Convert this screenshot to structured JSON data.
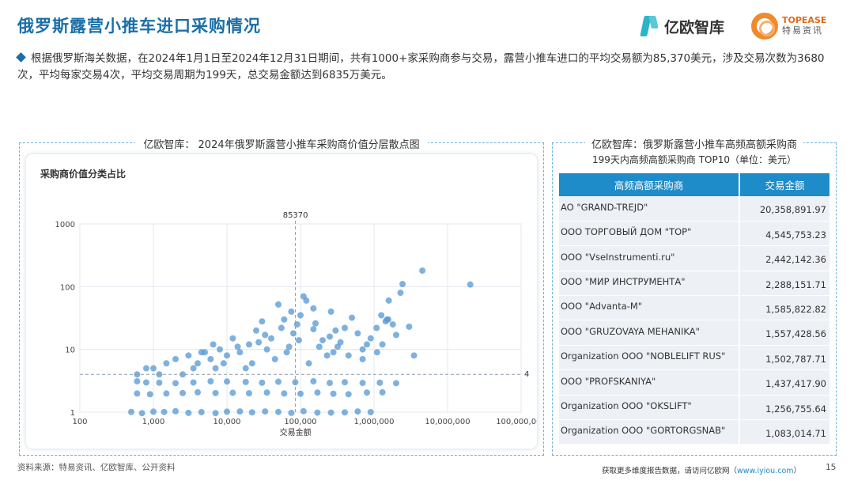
{
  "page": {
    "title": "俄罗斯露营小推车进口采购情况",
    "summary": "根据俄罗斯海关数据，在2024年1月1日至2024年12月31日期间，共有1000+家采购商参与交易，露营小推车进口的平均交易额为85,370美元，涉及交易次数为3680次，平均每家交易4次，平均交易周期为199天，总交易金额达到6835万美元。",
    "logos": {
      "iyiou": "亿欧智库",
      "topease_en": "TOPEASE",
      "topease_cn": "特易资讯"
    },
    "source": "资料来源：特易资讯、亿欧智库、公开资料",
    "footer_prefix": "获取更多维度报告数据，请访问亿欧网（",
    "footer_link": "www.iyiou.com",
    "footer_suffix": "）",
    "page_number": "15"
  },
  "left_panel": {
    "title": "亿欧智库： 2024年俄罗斯露营小推车采购商价值分层散点图",
    "chart_heading": "采购商价值分类占比"
  },
  "chart_data": {
    "type": "scatter",
    "xscale": "log",
    "yscale": "log",
    "xlim": [
      100,
      100000000
    ],
    "ylim": [
      1,
      1000
    ],
    "xlabel": "交易金额",
    "ylabel": "",
    "x_ticks": [
      100,
      1000,
      10000,
      100000,
      1000000,
      10000000,
      100000000
    ],
    "x_tick_labels": [
      "100",
      "1,000",
      "10,000",
      "100,000",
      "1,000,000",
      "10,000,000",
      "100,000,000"
    ],
    "y_ticks": [
      1,
      10,
      100,
      1000
    ],
    "y_tick_labels": [
      "1",
      "10",
      "100",
      "1000"
    ],
    "reference_lines": {
      "x": 85370,
      "x_label": "85370",
      "y": 4,
      "y_label": "4"
    },
    "grid": true,
    "marker_color": "#5b9bd5",
    "points": [
      [
        20358891,
        108
      ],
      [
        4545753,
        180
      ],
      [
        2442142,
        110
      ],
      [
        2288151,
        80
      ],
      [
        1585822,
        60
      ],
      [
        1557428,
        30
      ],
      [
        1502787,
        30
      ],
      [
        1437417,
        28
      ],
      [
        1256755,
        35
      ],
      [
        1083014,
        22
      ],
      [
        3000000,
        23
      ],
      [
        1800000,
        25
      ],
      [
        900000,
        15
      ],
      [
        800000,
        12
      ],
      [
        700000,
        10
      ],
      [
        600000,
        18
      ],
      [
        500000,
        32
      ],
      [
        400000,
        22
      ],
      [
        350000,
        13
      ],
      [
        300000,
        20
      ],
      [
        250000,
        16
      ],
      [
        200000,
        14
      ],
      [
        150000,
        45
      ],
      [
        120000,
        60
      ],
      [
        100000,
        35
      ],
      [
        90000,
        25
      ],
      [
        80000,
        18
      ],
      [
        70000,
        11
      ],
      [
        60000,
        30
      ],
      [
        50000,
        52
      ],
      [
        40000,
        15
      ],
      [
        30000,
        28
      ],
      [
        25000,
        20
      ],
      [
        20000,
        12
      ],
      [
        15000,
        9
      ],
      [
        12000,
        15
      ],
      [
        10000,
        8
      ],
      [
        8000,
        10
      ],
      [
        6000,
        7
      ],
      [
        5000,
        9
      ],
      [
        4000,
        6
      ],
      [
        3000,
        8
      ],
      [
        2000,
        7
      ],
      [
        1500,
        6
      ],
      [
        1000,
        5
      ],
      [
        800,
        5
      ],
      [
        600,
        4
      ],
      [
        700000,
        7
      ],
      [
        450000,
        8
      ],
      [
        280000,
        9
      ],
      [
        180000,
        11
      ],
      [
        130000,
        6
      ],
      [
        95000,
        14
      ],
      [
        65000,
        9
      ],
      [
        45000,
        7
      ],
      [
        35000,
        10
      ],
      [
        22000,
        6
      ],
      [
        18000,
        5
      ],
      [
        9000,
        6
      ],
      [
        7000,
        5
      ],
      [
        3500,
        5
      ],
      [
        2500,
        4
      ],
      [
        1200,
        4
      ],
      [
        1100000,
        9
      ],
      [
        1300000,
        12
      ],
      [
        2000000,
        17
      ],
      [
        160000,
        26
      ],
      [
        75000,
        40
      ],
      [
        55000,
        22
      ],
      [
        33000,
        17
      ],
      [
        3500000,
        8
      ],
      [
        260000,
        40
      ],
      [
        110000,
        70
      ],
      [
        27000,
        13
      ],
      [
        14000,
        11
      ],
      [
        6500,
        12
      ],
      [
        4500,
        9
      ],
      [
        230000,
        8
      ],
      [
        150000,
        21
      ],
      [
        320000,
        11
      ],
      [
        600,
        3
      ],
      [
        800,
        3
      ],
      [
        1200,
        3
      ],
      [
        2000,
        3
      ],
      [
        3500,
        3
      ],
      [
        6000,
        3
      ],
      [
        10000,
        3
      ],
      [
        18000,
        3
      ],
      [
        30000,
        3
      ],
      [
        50000,
        3
      ],
      [
        85000,
        3
      ],
      [
        150000,
        3
      ],
      [
        250000,
        3
      ],
      [
        400000,
        3
      ],
      [
        700000,
        3
      ],
      [
        1200000,
        3
      ],
      [
        2000000,
        3
      ],
      [
        600,
        2
      ],
      [
        900,
        2
      ],
      [
        1500,
        2
      ],
      [
        2500,
        2
      ],
      [
        4000,
        2
      ],
      [
        7000,
        2
      ],
      [
        12000,
        2
      ],
      [
        20000,
        2
      ],
      [
        35000,
        2
      ],
      [
        60000,
        2
      ],
      [
        100000,
        2
      ],
      [
        170000,
        2
      ],
      [
        280000,
        2
      ],
      [
        450000,
        2
      ],
      [
        800000,
        2
      ],
      [
        1300000,
        2
      ],
      [
        500,
        1
      ],
      [
        700,
        1
      ],
      [
        1000,
        1
      ],
      [
        1400,
        1
      ],
      [
        2000,
        1
      ],
      [
        3000,
        1
      ],
      [
        4500,
        1
      ],
      [
        7000,
        1
      ],
      [
        10000,
        1
      ],
      [
        15000,
        1
      ],
      [
        22000,
        1
      ],
      [
        33000,
        1
      ],
      [
        50000,
        1
      ],
      [
        75000,
        1
      ],
      [
        110000,
        1
      ],
      [
        170000,
        1
      ],
      [
        260000,
        1
      ],
      [
        400000,
        1
      ],
      [
        600000,
        1
      ],
      [
        900000,
        1
      ]
    ]
  },
  "right_panel": {
    "title": "亿欧智库：俄罗斯露营小推车高频高额采购商",
    "subtitle": "199天内高频高额采购商 TOP10（单位：美元）",
    "col_buyer": "高频高额采购商",
    "col_amount": "交易金额",
    "rows": [
      {
        "name": "AO \"GRAND-TREJD\"",
        "amount": "20,358,891.97"
      },
      {
        "name": "OOO ТОРГОВЫЙ ДОМ \"ТОР\"",
        "amount": "4,545,753.23"
      },
      {
        "name": "OOO \"VseInstrumenti.ru\"",
        "amount": "2,442,142.36"
      },
      {
        "name": "OOO \"МИР ИНСТРУМЕНТА\"",
        "amount": "2,288,151.71"
      },
      {
        "name": "OOO \"Advanta-M\"",
        "amount": "1,585,822.82"
      },
      {
        "name": "OOO \"GRUZOVAYA MEHANIKA\"",
        "amount": "1,557,428.56"
      },
      {
        "name": "Organization OOO \"NOBLELIFT RUS\"",
        "amount": "1,502,787.71"
      },
      {
        "name": "OOO \"PROFSKANIYA\"",
        "amount": "1,437,417.90"
      },
      {
        "name": "Organization OOO \"OKSLIFT\"",
        "amount": "1,256,755.64"
      },
      {
        "name": "Organization OOO \"GORTORGSNAB\"",
        "amount": "1,083,014.71"
      }
    ]
  }
}
